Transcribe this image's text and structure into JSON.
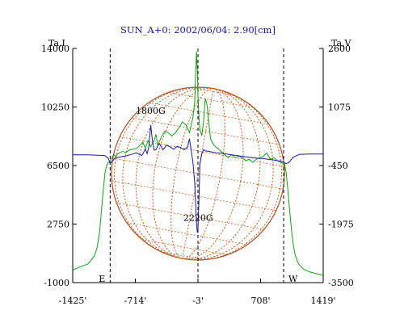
{
  "chart_data": {
    "type": "line",
    "title": "SUN_A+0: 2002/06/04: 2.90[cm]",
    "ylabel_left": "Ta,I",
    "ylabel_right": "Ta,V",
    "xlim": [
      -1425,
      1419
    ],
    "ylim_left": [
      -1000,
      14000
    ],
    "ylim_right": [
      -3500,
      2600
    ],
    "x_ticks": [
      "-1425'",
      "-714'",
      "-3'",
      "708'",
      "1419'"
    ],
    "left_ticks": [
      "14000",
      "10250",
      "6500",
      "2750",
      "-1000"
    ],
    "right_ticks": [
      "2600",
      "1075",
      "-450",
      "-1975",
      "-3500"
    ],
    "limb_markers": [
      {
        "label": "E",
        "x": -1000
      },
      {
        "label": "W",
        "x": 970
      }
    ],
    "center_marker_x": -3,
    "grid": false,
    "annotations": [
      {
        "text": "1800G",
        "x": -540,
        "y_left": 9800
      },
      {
        "text": "2220G",
        "x": 0,
        "y_left": 2950
      }
    ],
    "series": [
      {
        "axis": "left",
        "color": "#1a9c1a",
        "x": [
          -1425,
          -1350,
          -1250,
          -1180,
          -1150,
          -1120,
          -1100,
          -1080,
          -1060,
          -1040,
          -1020,
          -1000,
          -980,
          -960,
          -940,
          -900,
          -860,
          -820,
          -780,
          -740,
          -700,
          -660,
          -630,
          -600,
          -570,
          -540,
          -520,
          -500,
          -480,
          -460,
          -420,
          -380,
          -340,
          -300,
          -260,
          -220,
          -180,
          -140,
          -100,
          -80,
          -60,
          -40,
          -20,
          -10,
          -3,
          10,
          20,
          40,
          60,
          80,
          100,
          140,
          180,
          220,
          260,
          300,
          340,
          380,
          420,
          460,
          500,
          540,
          580,
          620,
          660,
          700,
          740,
          780,
          820,
          860,
          900,
          940,
          980,
          1000,
          1020,
          1040,
          1060,
          1080,
          1100,
          1130,
          1160,
          1200,
          1260,
          1320,
          1380,
          1419
        ],
        "values": [
          -200,
          0,
          200,
          700,
          1200,
          2200,
          3500,
          4800,
          6000,
          6500,
          6700,
          6800,
          7000,
          7200,
          7100,
          7300,
          7400,
          7350,
          7500,
          7550,
          7600,
          7800,
          8000,
          7600,
          8100,
          7700,
          7900,
          8100,
          8500,
          7800,
          8300,
          8700,
          8600,
          8400,
          8600,
          8900,
          9300,
          9100,
          8600,
          9100,
          9600,
          10600,
          13800,
          12600,
          11000,
          9400,
          8800,
          8400,
          9300,
          10800,
          10400,
          8200,
          7800,
          7600,
          7400,
          7200,
          7000,
          7200,
          7000,
          7100,
          7000,
          6800,
          6900,
          6700,
          6900,
          7000,
          7100,
          7300,
          6900,
          7000,
          6800,
          6700,
          6600,
          6000,
          4800,
          3500,
          2300,
          1400,
          800,
          300,
          50,
          -150,
          -300,
          -400,
          -480,
          -550
        ]
      },
      {
        "axis": "right",
        "color": "#1a1a9a",
        "x": [
          -1425,
          -1350,
          -1250,
          -1150,
          -1060,
          -1020,
          -1000,
          -980,
          -940,
          -880,
          -820,
          -760,
          -700,
          -640,
          -600,
          -580,
          -560,
          -540,
          -520,
          -500,
          -480,
          -460,
          -440,
          -400,
          -360,
          -320,
          -280,
          -240,
          -200,
          -160,
          -120,
          -100,
          -80,
          -60,
          -40,
          -20,
          -10,
          -3,
          10,
          20,
          40,
          60,
          80,
          120,
          160,
          200,
          260,
          320,
          380,
          440,
          500,
          560,
          620,
          680,
          740,
          800,
          860,
          920,
          960,
          980,
          1000,
          1030,
          1080,
          1150,
          1250,
          1350,
          1419
        ],
        "values": [
          -170,
          -170,
          -170,
          -180,
          -190,
          -260,
          -400,
          -340,
          -250,
          -220,
          -200,
          -160,
          -120,
          -190,
          -20,
          -140,
          50,
          600,
          210,
          -50,
          -40,
          60,
          120,
          -40,
          80,
          40,
          -30,
          50,
          20,
          -40,
          30,
          250,
          -40,
          -380,
          -900,
          -1900,
          -2200,
          -2100,
          -1200,
          -400,
          -150,
          -40,
          -70,
          -80,
          -100,
          -120,
          -130,
          -150,
          -170,
          -190,
          -210,
          -230,
          -250,
          -260,
          -270,
          -290,
          -310,
          -330,
          -350,
          -380,
          -400,
          -370,
          -230,
          -160,
          -150,
          -150,
          -150
        ]
      }
    ]
  }
}
